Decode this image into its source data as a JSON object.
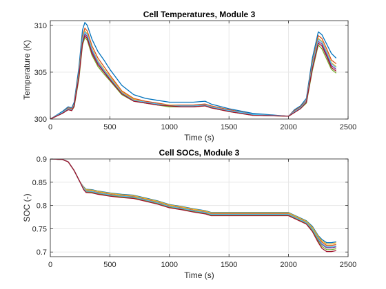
{
  "colors": [
    "#0072BD",
    "#D95319",
    "#EDB120",
    "#7E2F8E",
    "#77AC30",
    "#4DBEEE",
    "#A2142F"
  ],
  "chart_data": [
    {
      "type": "line",
      "title": "Cell Temperatures, Module 3",
      "xlabel": "Time (s)",
      "ylabel": "Temperature (K)",
      "xlim": [
        0,
        2500
      ],
      "ylim": [
        300,
        310.5
      ],
      "xticks": [
        0,
        500,
        1000,
        1500,
        2000,
        2500
      ],
      "yticks": [
        300,
        305,
        310
      ],
      "grid": true,
      "series": [
        {
          "x": [
            0,
            100,
            150,
            180,
            200,
            240,
            270,
            290,
            310,
            350,
            400,
            450,
            500,
            600,
            700,
            800,
            900,
            1000,
            1100,
            1200,
            1300,
            1350,
            1500,
            1700,
            2000,
            2050,
            2100,
            2150,
            2200,
            2250,
            2280,
            2320,
            2360,
            2400
          ],
          "y": [
            300,
            300.8,
            301.3,
            301.2,
            301.8,
            305.5,
            309.5,
            310.3,
            310.0,
            308.5,
            307.2,
            306.3,
            305.3,
            303.6,
            302.6,
            302.2,
            302.0,
            301.8,
            301.8,
            301.8,
            301.9,
            301.6,
            301.1,
            300.6,
            300.3,
            301.0,
            301.4,
            302.2,
            306.5,
            309.3,
            309.0,
            308.0,
            307.0,
            306.5
          ]
        },
        {
          "x": [
            0,
            100,
            150,
            180,
            200,
            240,
            270,
            290,
            310,
            350,
            400,
            450,
            500,
            600,
            700,
            800,
            900,
            1000,
            1100,
            1200,
            1300,
            1350,
            1500,
            1700,
            2000,
            2050,
            2100,
            2150,
            2200,
            2250,
            2280,
            2320,
            2360,
            2400
          ],
          "y": [
            300,
            300.7,
            301.2,
            301.1,
            301.6,
            305.0,
            308.8,
            309.7,
            309.4,
            307.8,
            306.5,
            305.6,
            304.7,
            303.0,
            302.2,
            301.9,
            301.7,
            301.5,
            301.5,
            301.5,
            301.6,
            301.4,
            301.0,
            300.5,
            300.3,
            300.9,
            301.3,
            302.0,
            306.0,
            308.9,
            308.6,
            307.5,
            306.3,
            305.9
          ]
        },
        {
          "x": [
            0,
            100,
            150,
            180,
            200,
            240,
            270,
            290,
            310,
            350,
            400,
            450,
            500,
            600,
            700,
            800,
            900,
            1000,
            1100,
            1200,
            1300,
            1350,
            1500,
            1700,
            2000,
            2050,
            2100,
            2150,
            2200,
            2250,
            2280,
            2320,
            2360,
            2400
          ],
          "y": [
            300,
            300.7,
            301.1,
            301.0,
            301.5,
            304.8,
            308.6,
            309.4,
            309.1,
            307.5,
            306.2,
            305.3,
            304.5,
            302.9,
            302.1,
            301.8,
            301.6,
            301.5,
            301.4,
            301.4,
            301.5,
            301.3,
            300.9,
            300.5,
            300.3,
            300.8,
            301.2,
            301.9,
            305.8,
            308.6,
            308.3,
            307.2,
            306.0,
            305.6
          ]
        },
        {
          "x": [
            0,
            100,
            150,
            180,
            200,
            240,
            270,
            290,
            310,
            350,
            400,
            450,
            500,
            600,
            700,
            800,
            900,
            1000,
            1100,
            1200,
            1300,
            1350,
            1500,
            1700,
            2000,
            2050,
            2100,
            2150,
            2200,
            2250,
            2280,
            2320,
            2360,
            2400
          ],
          "y": [
            300,
            300.6,
            301.0,
            300.9,
            301.4,
            304.6,
            308.3,
            309.1,
            308.8,
            307.2,
            306.0,
            305.1,
            304.3,
            302.8,
            302.0,
            301.8,
            301.6,
            301.4,
            301.4,
            301.4,
            301.5,
            301.2,
            300.9,
            300.5,
            300.3,
            300.8,
            301.2,
            301.8,
            305.6,
            308.3,
            308.0,
            306.9,
            305.7,
            305.3
          ]
        },
        {
          "x": [
            0,
            100,
            150,
            180,
            200,
            240,
            270,
            290,
            310,
            350,
            400,
            450,
            500,
            600,
            700,
            800,
            900,
            1000,
            1100,
            1200,
            1300,
            1350,
            1500,
            1700,
            2000,
            2050,
            2100,
            2150,
            2200,
            2250,
            2280,
            2320,
            2360,
            2400
          ],
          "y": [
            300,
            300.6,
            301.0,
            300.9,
            301.3,
            304.3,
            307.9,
            308.7,
            308.4,
            306.8,
            305.6,
            304.8,
            304.1,
            302.6,
            301.9,
            301.7,
            301.5,
            301.3,
            301.3,
            301.3,
            301.4,
            301.2,
            300.8,
            300.4,
            300.3,
            300.7,
            301.1,
            301.7,
            305.2,
            307.9,
            307.5,
            306.4,
            305.3,
            304.9
          ]
        },
        {
          "x": [
            0,
            100,
            150,
            180,
            200,
            240,
            270,
            290,
            310,
            350,
            400,
            450,
            500,
            600,
            700,
            800,
            900,
            1000,
            1100,
            1200,
            1300,
            1350,
            1500,
            1700,
            2000,
            2050,
            2100,
            2150,
            2200,
            2250,
            2280,
            2320,
            2360,
            2400
          ],
          "y": [
            300,
            300.7,
            301.1,
            301.0,
            301.5,
            304.7,
            308.5,
            309.3,
            309.0,
            307.4,
            306.1,
            305.2,
            304.4,
            302.8,
            302.0,
            301.8,
            301.6,
            301.4,
            301.4,
            301.4,
            301.5,
            301.3,
            300.9,
            300.5,
            300.3,
            300.8,
            301.2,
            301.9,
            305.7,
            308.5,
            308.2,
            307.1,
            305.9,
            305.5
          ]
        },
        {
          "x": [
            0,
            100,
            150,
            180,
            200,
            240,
            270,
            290,
            310,
            350,
            400,
            450,
            500,
            600,
            700,
            800,
            900,
            1000,
            1100,
            1200,
            1300,
            1350,
            1500,
            1700,
            2000,
            2050,
            2100,
            2150,
            2200,
            2250,
            2280,
            2320,
            2360,
            2400
          ],
          "y": [
            300,
            300.6,
            301.0,
            300.9,
            301.4,
            304.5,
            308.1,
            308.9,
            308.6,
            307.0,
            305.8,
            305.0,
            304.2,
            302.7,
            301.9,
            301.7,
            301.5,
            301.4,
            301.3,
            301.3,
            301.4,
            301.2,
            300.8,
            300.4,
            300.3,
            300.7,
            301.1,
            301.8,
            305.4,
            308.1,
            307.8,
            306.7,
            305.5,
            305.1
          ]
        }
      ]
    },
    {
      "type": "line",
      "title": "Cell SOCs, Module 3",
      "xlabel": "Time (s)",
      "ylabel": "SOC (-)",
      "xlim": [
        0,
        2500
      ],
      "ylim": [
        0.69,
        0.9
      ],
      "xticks": [
        0,
        500,
        1000,
        1500,
        2000,
        2500
      ],
      "yticks": [
        0.7,
        0.75,
        0.8,
        0.85,
        0.9
      ],
      "grid": true,
      "series": [
        {
          "x": [
            0,
            100,
            150,
            200,
            250,
            280,
            300,
            350,
            400,
            450,
            500,
            600,
            700,
            800,
            900,
            1000,
            1100,
            1200,
            1300,
            1350,
            1500,
            1700,
            2000,
            2050,
            2100,
            2150,
            2200,
            2250,
            2280,
            2320,
            2360,
            2400
          ],
          "y": [
            0.9,
            0.899,
            0.894,
            0.875,
            0.85,
            0.84,
            0.835,
            0.834,
            0.831,
            0.829,
            0.827,
            0.824,
            0.822,
            0.816,
            0.81,
            0.802,
            0.798,
            0.793,
            0.789,
            0.785,
            0.785,
            0.785,
            0.785,
            0.779,
            0.773,
            0.767,
            0.755,
            0.735,
            0.727,
            0.72,
            0.72,
            0.722
          ]
        },
        {
          "x": [
            0,
            100,
            150,
            200,
            250,
            280,
            300,
            350,
            400,
            450,
            500,
            600,
            700,
            800,
            900,
            1000,
            1100,
            1200,
            1300,
            1350,
            1500,
            1700,
            2000,
            2050,
            2100,
            2150,
            2200,
            2250,
            2280,
            2320,
            2360,
            2400
          ],
          "y": [
            0.9,
            0.899,
            0.894,
            0.875,
            0.85,
            0.838,
            0.832,
            0.831,
            0.828,
            0.826,
            0.824,
            0.821,
            0.819,
            0.813,
            0.807,
            0.799,
            0.795,
            0.79,
            0.786,
            0.782,
            0.782,
            0.782,
            0.782,
            0.776,
            0.77,
            0.764,
            0.751,
            0.73,
            0.721,
            0.714,
            0.714,
            0.716
          ]
        },
        {
          "x": [
            0,
            100,
            150,
            200,
            250,
            280,
            300,
            350,
            400,
            450,
            500,
            600,
            700,
            800,
            900,
            1000,
            1100,
            1200,
            1300,
            1350,
            1500,
            1700,
            2000,
            2050,
            2100,
            2150,
            2200,
            2250,
            2280,
            2320,
            2360,
            2400
          ],
          "y": [
            0.9,
            0.899,
            0.894,
            0.875,
            0.85,
            0.839,
            0.834,
            0.833,
            0.83,
            0.828,
            0.826,
            0.823,
            0.821,
            0.815,
            0.809,
            0.801,
            0.797,
            0.792,
            0.788,
            0.784,
            0.784,
            0.784,
            0.784,
            0.778,
            0.772,
            0.766,
            0.753,
            0.733,
            0.724,
            0.717,
            0.717,
            0.72
          ]
        },
        {
          "x": [
            0,
            100,
            150,
            200,
            250,
            280,
            300,
            350,
            400,
            450,
            500,
            600,
            700,
            800,
            900,
            1000,
            1100,
            1200,
            1300,
            1350,
            1500,
            1700,
            2000,
            2050,
            2100,
            2150,
            2200,
            2250,
            2280,
            2320,
            2360,
            2400
          ],
          "y": [
            0.9,
            0.899,
            0.894,
            0.875,
            0.85,
            0.836,
            0.83,
            0.829,
            0.826,
            0.824,
            0.822,
            0.819,
            0.817,
            0.811,
            0.805,
            0.797,
            0.793,
            0.788,
            0.784,
            0.78,
            0.78,
            0.78,
            0.78,
            0.774,
            0.768,
            0.762,
            0.748,
            0.726,
            0.716,
            0.709,
            0.709,
            0.711
          ]
        },
        {
          "x": [
            0,
            100,
            150,
            200,
            250,
            280,
            300,
            350,
            400,
            450,
            500,
            600,
            700,
            800,
            900,
            1000,
            1100,
            1200,
            1300,
            1350,
            1500,
            1700,
            2000,
            2050,
            2100,
            2150,
            2200,
            2250,
            2280,
            2320,
            2360,
            2400
          ],
          "y": [
            0.9,
            0.899,
            0.894,
            0.875,
            0.85,
            0.835,
            0.829,
            0.828,
            0.825,
            0.823,
            0.821,
            0.818,
            0.816,
            0.81,
            0.804,
            0.796,
            0.792,
            0.787,
            0.783,
            0.779,
            0.779,
            0.779,
            0.779,
            0.773,
            0.767,
            0.761,
            0.746,
            0.723,
            0.712,
            0.705,
            0.705,
            0.707
          ]
        },
        {
          "x": [
            0,
            100,
            150,
            200,
            250,
            280,
            300,
            350,
            400,
            450,
            500,
            600,
            700,
            800,
            900,
            1000,
            1100,
            1200,
            1300,
            1350,
            1500,
            1700,
            2000,
            2050,
            2100,
            2150,
            2200,
            2250,
            2280,
            2320,
            2360,
            2400
          ],
          "y": [
            0.9,
            0.899,
            0.894,
            0.875,
            0.85,
            0.837,
            0.831,
            0.83,
            0.827,
            0.825,
            0.823,
            0.82,
            0.818,
            0.812,
            0.806,
            0.798,
            0.794,
            0.789,
            0.785,
            0.781,
            0.781,
            0.781,
            0.781,
            0.775,
            0.769,
            0.763,
            0.749,
            0.728,
            0.718,
            0.711,
            0.711,
            0.713
          ]
        },
        {
          "x": [
            0,
            100,
            150,
            200,
            250,
            280,
            300,
            350,
            400,
            450,
            500,
            600,
            700,
            800,
            900,
            1000,
            1100,
            1200,
            1300,
            1350,
            1500,
            1700,
            2000,
            2050,
            2100,
            2150,
            2200,
            2250,
            2280,
            2320,
            2360,
            2400
          ],
          "y": [
            0.9,
            0.899,
            0.894,
            0.875,
            0.85,
            0.834,
            0.828,
            0.827,
            0.824,
            0.822,
            0.82,
            0.817,
            0.815,
            0.809,
            0.803,
            0.795,
            0.791,
            0.786,
            0.782,
            0.778,
            0.778,
            0.778,
            0.778,
            0.772,
            0.766,
            0.76,
            0.744,
            0.72,
            0.708,
            0.701,
            0.701,
            0.703
          ]
        }
      ]
    }
  ]
}
